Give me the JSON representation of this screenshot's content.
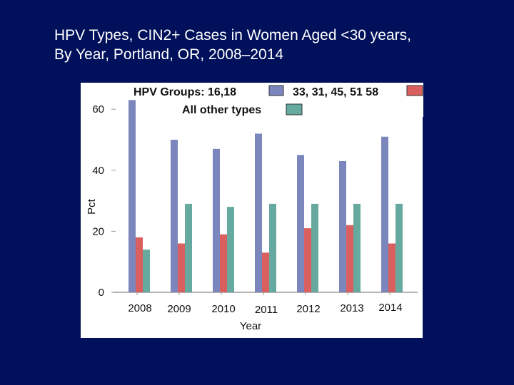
{
  "slide": {
    "title_line1": "HPV Types, CIN2+ Cases in Women Aged <30 years,",
    "title_line2": "By Year, Portland, OR, 2008–2014",
    "background_color": "#00105a"
  },
  "chart_data": {
    "type": "bar",
    "title": "HPV Types, CIN2+ Cases in Women Aged <30 years, By Year, Portland, OR, 2008–2014",
    "xlabel": "Year",
    "ylabel": "Pct",
    "ylim": [
      0,
      65
    ],
    "yticks": [
      0,
      20,
      40,
      60
    ],
    "categories": [
      "2008",
      "2009",
      "2010",
      "2011",
      "2012",
      "2013",
      "2014"
    ],
    "legend": {
      "position": "top",
      "entries": [
        "HPV Groups: 16,18",
        "33, 31, 45, 51 58",
        "All other types"
      ]
    },
    "series": [
      {
        "name": "HPV Groups: 16,18",
        "color": "#7b86bd",
        "values": [
          63,
          50,
          47,
          52,
          45,
          43,
          51
        ]
      },
      {
        "name": "33, 31, 45, 51 58",
        "color": "#d9605f",
        "values": [
          18,
          16,
          19,
          13,
          21,
          22,
          16
        ]
      },
      {
        "name": "All other types",
        "color": "#66aa9f",
        "values": [
          14,
          29,
          28,
          29,
          29,
          29,
          29
        ]
      }
    ]
  }
}
